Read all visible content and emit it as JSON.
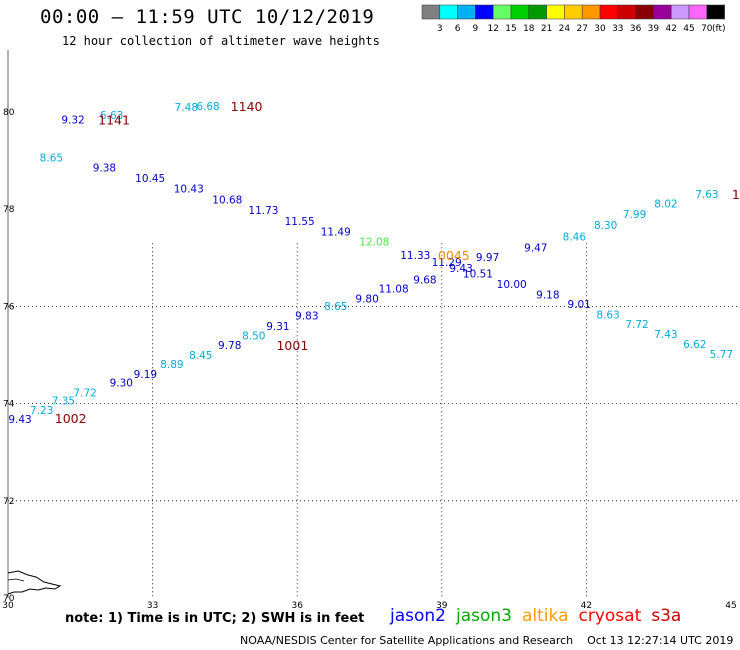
{
  "header": {
    "title": "00:00 – 11:59 UTC 10/12/2019",
    "subtitle": "12 hour collection of altimeter wave heights"
  },
  "colorbar": {
    "unit": "(ft)",
    "colors": [
      "#808080",
      "#00ffff",
      "#00b0f0",
      "#0000ff",
      "#66ff66",
      "#00d000",
      "#009900",
      "#ffff00",
      "#ffcc00",
      "#ff9900",
      "#ff0000",
      "#cc0000",
      "#880000",
      "#990099",
      "#cc99ff",
      "#ff66ff",
      "#000000"
    ],
    "labels": [
      "3",
      "6",
      "9",
      "12",
      "15",
      "18",
      "21",
      "24",
      "27",
      "30",
      "33",
      "36",
      "39",
      "42",
      "45",
      "70"
    ]
  },
  "axes": {
    "lat_labels": [
      "80",
      "78",
      "76",
      "74",
      "72",
      "70"
    ],
    "lon_labels": [
      "30",
      "33",
      "36",
      "39",
      "42",
      "45"
    ]
  },
  "colors": {
    "c6": "#00aadd",
    "c9": "#0000cc",
    "c12": "#44ee44",
    "time": "#880000",
    "altika_time": "#ff8800"
  },
  "observations": [
    {
      "v": "9.43",
      "c": "c9",
      "lon": 30.25,
      "lat": 73.6
    },
    {
      "v": "7.23",
      "c": "c6",
      "lon": 30.7,
      "lat": 73.79
    },
    {
      "v": "7.35",
      "c": "c6",
      "lon": 31.15,
      "lat": 73.98
    },
    {
      "v": "7.72",
      "c": "c6",
      "lon": 31.6,
      "lat": 74.15
    },
    {
      "v": "9.30",
      "c": "c9",
      "lon": 32.35,
      "lat": 74.35
    },
    {
      "v": "9.19",
      "c": "c9",
      "lon": 32.85,
      "lat": 74.53
    },
    {
      "v": "8.89",
      "c": "c6",
      "lon": 33.4,
      "lat": 74.73
    },
    {
      "v": "8.45",
      "c": "c6",
      "lon": 34.0,
      "lat": 74.92
    },
    {
      "v": "9.78",
      "c": "c9",
      "lon": 34.6,
      "lat": 75.12
    },
    {
      "v": "8.50",
      "c": "c6",
      "lon": 35.1,
      "lat": 75.32
    },
    {
      "v": "9.31",
      "c": "c9",
      "lon": 35.6,
      "lat": 75.51
    },
    {
      "v": "9.83",
      "c": "c9",
      "lon": 36.2,
      "lat": 75.73
    },
    {
      "v": "8.65",
      "c": "c6",
      "lon": 36.8,
      "lat": 75.93
    },
    {
      "v": "9.80",
      "c": "c9",
      "lon": 37.45,
      "lat": 76.08
    },
    {
      "v": "11.08",
      "c": "c9",
      "lon": 38.0,
      "lat": 76.29
    },
    {
      "v": "9.68",
      "c": "c9",
      "lon": 38.65,
      "lat": 76.47
    },
    {
      "v": "11.29",
      "c": "c9",
      "lon": 39.1,
      "lat": 76.83
    },
    {
      "v": "9.43",
      "c": "c9",
      "lon": 39.4,
      "lat": 76.71
    },
    {
      "v": "10.51",
      "c": "c9",
      "lon": 39.75,
      "lat": 76.59
    },
    {
      "v": "9.97",
      "c": "c9",
      "lon": 39.95,
      "lat": 76.93
    },
    {
      "v": "10.00",
      "c": "c9",
      "lon": 40.45,
      "lat": 76.38
    },
    {
      "v": "9.47",
      "c": "c9",
      "lon": 40.95,
      "lat": 77.13
    },
    {
      "v": "9.18",
      "c": "c9",
      "lon": 41.2,
      "lat": 76.16
    },
    {
      "v": "8.46",
      "c": "c6",
      "lon": 41.75,
      "lat": 77.36
    },
    {
      "v": "9.01",
      "c": "c9",
      "lon": 41.85,
      "lat": 75.97
    },
    {
      "v": "8.30",
      "c": "c6",
      "lon": 42.4,
      "lat": 77.59
    },
    {
      "v": "8.63",
      "c": "c6",
      "lon": 42.45,
      "lat": 75.75
    },
    {
      "v": "7.99",
      "c": "c6",
      "lon": 43.0,
      "lat": 77.82
    },
    {
      "v": "7.72",
      "c": "c6",
      "lon": 43.05,
      "lat": 75.56
    },
    {
      "v": "8.02",
      "c": "c6",
      "lon": 43.65,
      "lat": 78.03
    },
    {
      "v": "7.43",
      "c": "c6",
      "lon": 43.65,
      "lat": 75.35
    },
    {
      "v": "6.62",
      "c": "c6",
      "lon": 44.25,
      "lat": 75.14
    },
    {
      "v": "7.63",
      "c": "c6",
      "lon": 44.5,
      "lat": 78.23
    },
    {
      "v": "5.77",
      "c": "c6",
      "lon": 44.8,
      "lat": 74.94
    },
    {
      "v": "11.33",
      "c": "c9",
      "lon": 38.45,
      "lat": 76.98
    },
    {
      "v": "12.08",
      "c": "c12",
      "lon": 37.6,
      "lat": 77.25
    },
    {
      "v": "11.49",
      "c": "c9",
      "lon": 36.8,
      "lat": 77.46
    },
    {
      "v": "11.55",
      "c": "c9",
      "lon": 36.05,
      "lat": 77.68
    },
    {
      "v": "11.73",
      "c": "c9",
      "lon": 35.3,
      "lat": 77.9
    },
    {
      "v": "10.68",
      "c": "c9",
      "lon": 34.55,
      "lat": 78.12
    },
    {
      "v": "10.43",
      "c": "c9",
      "lon": 33.75,
      "lat": 78.34
    },
    {
      "v": "10.45",
      "c": "c9",
      "lon": 32.95,
      "lat": 78.56
    },
    {
      "v": "9.38",
      "c": "c9",
      "lon": 32.0,
      "lat": 78.78
    },
    {
      "v": "8.65",
      "c": "c6",
      "lon": 30.9,
      "lat": 78.98
    },
    {
      "v": "9.32",
      "c": "c9",
      "lon": 31.35,
      "lat": 79.76
    },
    {
      "v": "6.63",
      "c": "c6",
      "lon": 32.15,
      "lat": 79.86
    },
    {
      "v": "7.48",
      "c": "c6",
      "lon": 33.7,
      "lat": 80.02
    },
    {
      "v": "6.68",
      "c": "c6",
      "lon": 34.15,
      "lat": 80.04
    }
  ],
  "times": [
    {
      "v": "1002",
      "c": "time",
      "lon": 31.3,
      "lat": 73.62
    },
    {
      "v": "1001",
      "c": "time",
      "lon": 35.9,
      "lat": 75.12
    },
    {
      "v": "1141",
      "c": "time",
      "lon": 32.2,
      "lat": 79.76
    },
    {
      "v": "1140",
      "c": "time",
      "lon": 34.95,
      "lat": 80.04
    },
    {
      "v": "0045",
      "c": "altika_time",
      "lon": 39.25,
      "lat": 76.98
    },
    {
      "v": "1",
      "c": "time",
      "lon": 45.1,
      "lat": 78.23
    }
  ],
  "legend": {
    "note": "note:  1) Time is in UTC;  2) SWH is in feet",
    "satellites": [
      {
        "name": "jason2",
        "color": "#0000ff"
      },
      {
        "name": "jason3",
        "color": "#00aa00"
      },
      {
        "name": "altika",
        "color": "#ff9900"
      },
      {
        "name": "cryosat",
        "color": "#ff0000"
      },
      {
        "name": "s3a",
        "color": "#cc0000"
      }
    ]
  },
  "footer": {
    "credit": "NOAA/NESDIS Center for Satellite Applications and Research",
    "timestamp": "Oct 13 12:27:14 UTC 2019"
  }
}
